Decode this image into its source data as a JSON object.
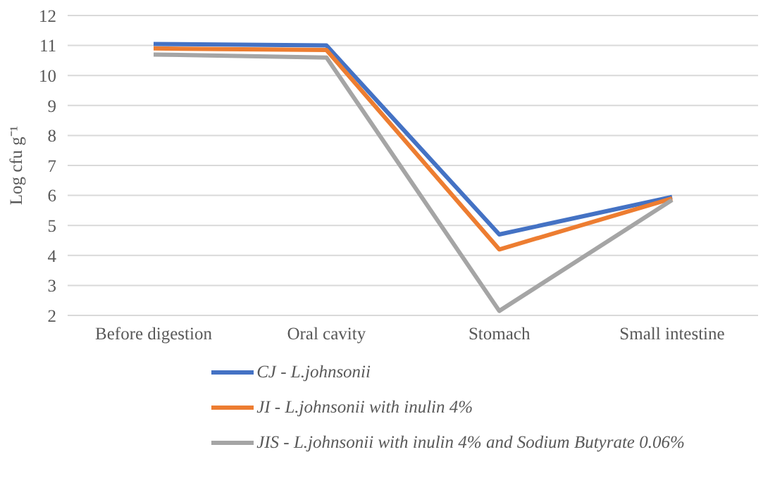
{
  "chart_data": {
    "type": "line",
    "ylabel": "Log cfu g⁻¹",
    "categories": [
      "Before digestion",
      "Oral cavity",
      "Stomach",
      "Small intestine"
    ],
    "series": [
      {
        "name": "CJ - L.johnsonii",
        "color": "#4472c4",
        "values": [
          11.05,
          11.0,
          4.7,
          5.95
        ]
      },
      {
        "name": "JI - L.johnsonii with inulin 4%",
        "color": "#ed7d31",
        "values": [
          10.9,
          10.85,
          4.2,
          5.9
        ]
      },
      {
        "name": "JIS - L.johnsonii with inulin 4% and Sodium Butyrate 0.06%",
        "color": "#a5a5a5",
        "values": [
          10.7,
          10.6,
          2.15,
          5.85
        ]
      }
    ],
    "ylim": [
      2,
      12
    ],
    "yticks": [
      2,
      3,
      4,
      5,
      6,
      7,
      8,
      9,
      10,
      11,
      12
    ],
    "grid": "y",
    "legend": "bottom",
    "marker": "none",
    "line_style": "solid"
  }
}
